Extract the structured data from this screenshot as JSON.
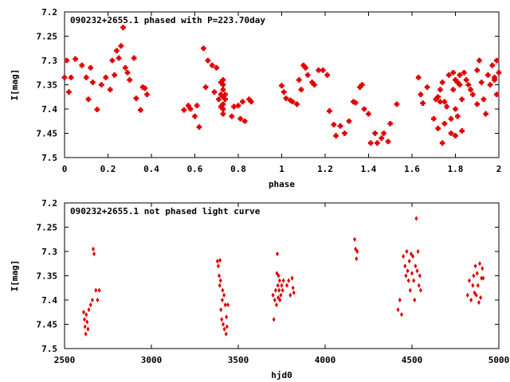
{
  "chart_data": [
    {
      "type": "scatter",
      "title": "090232+2655.1 phased with P=223.70day",
      "xlabel": "phase",
      "ylabel": "I[mag]",
      "xlim": [
        0,
        2
      ],
      "ylim": [
        7.2,
        7.5
      ],
      "y_inverted": true,
      "xticks": [
        "0",
        "0.2",
        "0.4",
        "0.6",
        "0.8",
        "1",
        "1.2",
        "1.4",
        "1.6",
        "1.8",
        "2"
      ],
      "yticks": [
        "7.2",
        "7.25",
        "7.3",
        "7.35",
        "7.4",
        "7.45",
        "7.5"
      ],
      "marker": "plus-bold",
      "color": "#e00000",
      "series": [
        {
          "x": [
            0.0,
            0.01,
            0.02,
            0.03,
            0.05,
            0.08,
            0.1,
            0.11,
            0.12,
            0.13,
            0.15,
            0.17,
            0.19,
            0.21,
            0.22,
            0.23,
            0.24,
            0.25,
            0.26,
            0.27,
            0.28,
            0.29,
            0.3,
            0.32,
            0.33,
            0.35,
            0.36,
            0.37,
            0.38,
            0.55,
            0.57,
            0.58,
            0.6,
            0.61,
            0.62,
            0.64,
            0.65,
            0.66,
            0.68,
            0.69,
            0.7,
            0.71,
            0.72,
            0.72,
            0.72,
            0.73,
            0.73,
            0.73,
            0.73,
            0.73,
            0.73,
            0.73,
            0.74,
            0.74,
            0.77,
            0.78,
            0.8,
            0.81,
            0.82,
            0.83,
            0.85,
            0.86,
            1.0,
            1.01,
            1.02,
            1.04,
            1.05,
            1.07,
            1.08,
            1.09,
            1.1,
            1.11,
            1.12,
            1.14,
            1.15,
            1.17,
            1.19,
            1.21,
            1.22,
            1.24,
            1.25,
            1.27,
            1.29,
            1.31,
            1.33,
            1.34,
            1.36,
            1.37,
            1.38,
            1.4,
            1.41,
            1.43,
            1.44,
            1.46,
            1.47,
            1.49,
            1.5,
            1.53,
            1.63,
            1.64,
            1.65,
            1.67,
            1.7,
            1.71,
            1.72,
            1.72,
            1.73,
            1.73,
            1.74,
            1.74,
            1.75,
            1.75,
            1.76,
            1.77,
            1.78,
            1.78,
            1.79,
            1.79,
            1.8,
            1.8,
            1.8,
            1.81,
            1.81,
            1.82,
            1.82,
            1.83,
            1.83,
            1.84,
            1.85,
            1.86,
            1.87,
            1.88,
            1.9,
            1.9,
            1.91,
            1.92,
            1.93,
            1.94,
            1.95,
            1.96,
            1.97,
            1.98,
            1.98,
            1.99,
            1.99,
            2.0
          ],
          "y": [
            7.335,
            7.3,
            7.365,
            7.335,
            7.297,
            7.31,
            7.335,
            7.38,
            7.315,
            7.345,
            7.401,
            7.35,
            7.335,
            7.36,
            7.3,
            7.33,
            7.28,
            7.295,
            7.27,
            7.232,
            7.315,
            7.325,
            7.34,
            7.295,
            7.378,
            7.402,
            7.355,
            7.357,
            7.37,
            7.402,
            7.393,
            7.4,
            7.415,
            7.393,
            7.437,
            7.275,
            7.355,
            7.3,
            7.31,
            7.365,
            7.315,
            7.38,
            7.345,
            7.37,
            7.395,
            7.34,
            7.35,
            7.36,
            7.375,
            7.39,
            7.4,
            7.41,
            7.37,
            7.38,
            7.415,
            7.395,
            7.393,
            7.42,
            7.385,
            7.425,
            7.38,
            7.385,
            7.352,
            7.365,
            7.378,
            7.382,
            7.385,
            7.39,
            7.34,
            7.36,
            7.31,
            7.315,
            7.33,
            7.345,
            7.35,
            7.32,
            7.32,
            7.33,
            7.404,
            7.432,
            7.455,
            7.435,
            7.45,
            7.425,
            7.385,
            7.387,
            7.355,
            7.35,
            7.4,
            7.41,
            7.47,
            7.45,
            7.47,
            7.46,
            7.45,
            7.467,
            7.43,
            7.39,
            7.335,
            7.37,
            7.388,
            7.355,
            7.42,
            7.38,
            7.375,
            7.44,
            7.36,
            7.385,
            7.345,
            7.47,
            7.385,
            7.43,
            7.395,
            7.33,
            7.42,
            7.45,
            7.325,
            7.36,
            7.34,
            7.4,
            7.455,
            7.415,
            7.345,
            7.33,
            7.35,
            7.445,
            7.38,
            7.325,
            7.34,
            7.35,
            7.36,
            7.37,
            7.39,
            7.32,
            7.3,
            7.345,
            7.38,
            7.41,
            7.33,
            7.35,
            7.31,
            7.34,
            7.335,
            7.37,
            7.3,
            7.325
          ]
        }
      ]
    },
    {
      "type": "scatter",
      "title": "090232+2655.1 not phased light curve",
      "xlabel": "hjd0",
      "ylabel": "I[mag]",
      "xlim": [
        2500,
        5000
      ],
      "ylim": [
        7.2,
        7.5
      ],
      "y_inverted": true,
      "xticks": [
        "2500",
        "3000",
        "3500",
        "4000",
        "4500",
        "5000"
      ],
      "yticks": [
        "7.2",
        "7.25",
        "7.3",
        "7.35",
        "7.4",
        "7.45",
        "7.5"
      ],
      "marker": "diamond",
      "color": "#e00000",
      "series": [
        {
          "x": [
            2610,
            2615,
            2618,
            2622,
            2625,
            2630,
            2635,
            2640,
            2650,
            2660,
            2665,
            2670,
            2680,
            2690,
            2700,
            3380,
            3385,
            3390,
            3393,
            3395,
            3398,
            3400,
            3405,
            3408,
            3410,
            3413,
            3418,
            3420,
            3425,
            3430,
            3432,
            3435,
            3440,
            3700,
            3705,
            3710,
            3715,
            3720,
            3722,
            3725,
            3728,
            3730,
            3732,
            3735,
            3738,
            3740,
            3745,
            3750,
            3755,
            3760,
            3780,
            3790,
            3800,
            3810,
            3815,
            3820,
            4170,
            4175,
            4180,
            4185,
            4420,
            4430,
            4440,
            4450,
            4460,
            4465,
            4470,
            4475,
            4480,
            4485,
            4490,
            4495,
            4500,
            4505,
            4510,
            4515,
            4520,
            4525,
            4530,
            4535,
            4540,
            4545,
            4550,
            4820,
            4830,
            4840,
            4850,
            4855,
            4860,
            4865,
            4870,
            4875,
            4880,
            4885,
            4890,
            4895,
            4900,
            4905,
            4910
          ],
          "y": [
            7.425,
            7.44,
            7.455,
            7.47,
            7.43,
            7.445,
            7.46,
            7.42,
            7.41,
            7.4,
            7.295,
            7.305,
            7.38,
            7.4,
            7.38,
            7.32,
            7.33,
            7.35,
            7.37,
            7.318,
            7.36,
            7.42,
            7.44,
            7.4,
            7.38,
            7.45,
            7.39,
            7.46,
            7.41,
            7.47,
            7.435,
            7.455,
            7.41,
            7.39,
            7.44,
            7.4,
            7.38,
            7.41,
            7.345,
            7.305,
            7.37,
            7.395,
            7.35,
            7.38,
            7.36,
            7.4,
            7.39,
            7.37,
            7.38,
            7.36,
            7.37,
            7.36,
            7.39,
            7.355,
            7.375,
            7.385,
            7.275,
            7.295,
            7.315,
            7.3,
            7.42,
            7.4,
            7.43,
            7.31,
            7.33,
            7.35,
            7.3,
            7.34,
            7.36,
            7.32,
            7.38,
            7.305,
            7.345,
            7.31,
            7.36,
            7.4,
            7.33,
            7.232,
            7.34,
            7.3,
            7.37,
            7.35,
            7.38,
            7.39,
            7.36,
            7.4,
            7.37,
            7.35,
            7.385,
            7.33,
            7.39,
            7.345,
            7.37,
            7.405,
            7.325,
            7.395,
            7.355,
            7.335,
            7.355
          ]
        }
      ]
    }
  ]
}
